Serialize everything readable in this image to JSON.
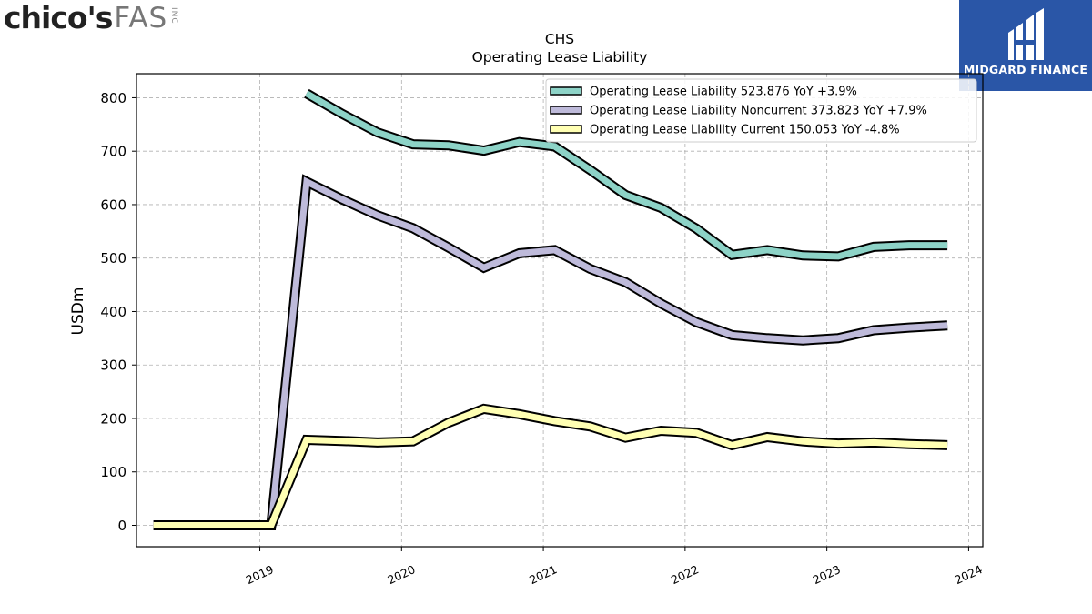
{
  "logo_left": {
    "name": "chico's",
    "suffix": "FAS",
    "small": "INC"
  },
  "logo_right": {
    "name": "MIDGARD FINANCE"
  },
  "chart_data": {
    "type": "line",
    "title": "CHS",
    "subtitle": "Operating Lease Liability",
    "ylabel": "USDm",
    "xlabel": "",
    "ylim": [
      -40,
      845
    ],
    "xlim": [
      2018.13,
      2024.1
    ],
    "y_ticks": [
      0,
      100,
      200,
      300,
      400,
      500,
      600,
      700,
      800
    ],
    "x_ticks": [
      2019,
      2020,
      2021,
      2022,
      2023,
      2024
    ],
    "x_tick_labels": [
      "2019",
      "2020",
      "2021",
      "2022",
      "2023",
      "2024"
    ],
    "grid": true,
    "legend_position": "top-right",
    "series": [
      {
        "name": "Operating Lease Liability",
        "legend_label": "Operating Lease Liability  523.876 YoY +3.9%",
        "color": "#8dd3c7",
        "x": [
          2019.33,
          2019.58,
          2019.83,
          2020.08,
          2020.33,
          2020.58,
          2020.83,
          2021.08,
          2021.33,
          2021.58,
          2021.83,
          2022.08,
          2022.33,
          2022.58,
          2022.83,
          2023.08,
          2023.33,
          2023.58,
          2023.85
        ],
        "values": [
          808,
          770,
          735,
          713,
          711,
          701,
          717,
          709,
          665,
          618,
          594,
          555,
          506,
          515,
          505,
          503,
          521,
          524,
          524
        ]
      },
      {
        "name": "Operating Lease Liability Noncurrent",
        "legend_label": "Operating Lease Liability Noncurrent  373.823 YoY +7.9%",
        "color": "#bebada",
        "x": [
          2018.25,
          2018.5,
          2018.75,
          2019.08,
          2019.33,
          2019.58,
          2019.83,
          2020.08,
          2020.33,
          2020.58,
          2020.83,
          2021.08,
          2021.33,
          2021.58,
          2021.83,
          2022.08,
          2022.33,
          2022.58,
          2022.83,
          2023.08,
          2023.33,
          2023.58,
          2023.85
        ],
        "values": [
          0,
          0,
          0,
          0,
          643,
          610,
          580,
          556,
          520,
          482,
          509,
          515,
          480,
          455,
          415,
          380,
          356,
          350,
          346,
          350,
          365,
          370,
          374
        ]
      },
      {
        "name": "Operating Lease Liability Current",
        "legend_label": "Operating Lease Liability Current  150.053 YoY -4.8%",
        "color": "#ffffb3",
        "x": [
          2018.25,
          2018.5,
          2018.75,
          2019.08,
          2019.33,
          2019.58,
          2019.83,
          2020.08,
          2020.33,
          2020.58,
          2020.83,
          2021.08,
          2021.33,
          2021.58,
          2021.83,
          2022.08,
          2022.33,
          2022.58,
          2022.83,
          2023.08,
          2023.33,
          2023.58,
          2023.85
        ],
        "values": [
          0,
          0,
          0,
          0,
          160,
          158,
          155,
          157,
          192,
          218,
          208,
          195,
          185,
          164,
          177,
          173,
          150,
          165,
          157,
          153,
          155,
          152,
          150
        ]
      }
    ]
  }
}
